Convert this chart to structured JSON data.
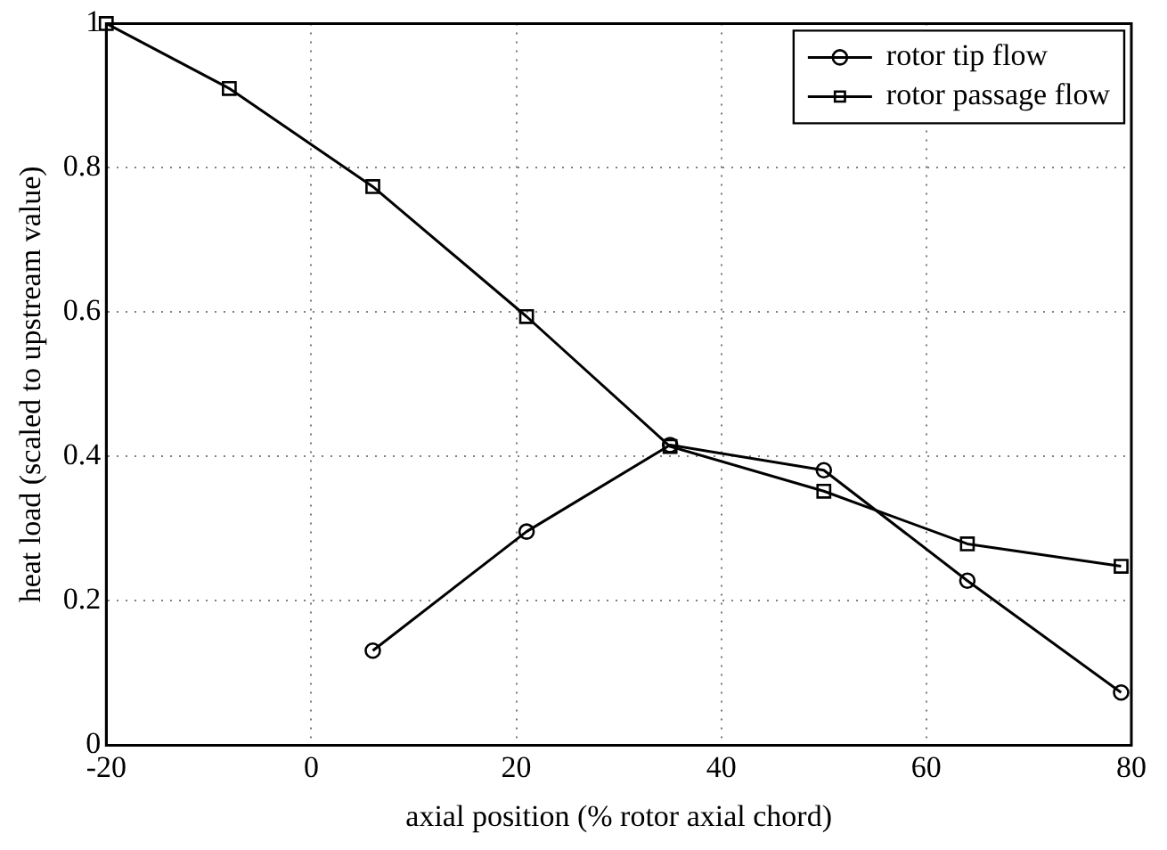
{
  "chart_data": {
    "type": "line",
    "xlabel": "axial position (% rotor axial chord)",
    "ylabel": "heat load (scaled to upstream value)",
    "xlim": [
      -20,
      80
    ],
    "xticks": [
      -20,
      0,
      20,
      40,
      60,
      80
    ],
    "ylim": [
      0,
      1
    ],
    "yticks": [
      0,
      0.2,
      0.4,
      0.6,
      0.8,
      1
    ],
    "grid": true,
    "legend": "top right",
    "line_style": "solid",
    "series": [
      {
        "name": "rotor tip flow",
        "color": "#000000",
        "marker": "circle",
        "x": [
          6,
          21,
          35,
          50,
          64,
          79
        ],
        "values": [
          0.131,
          0.296,
          0.416,
          0.381,
          0.228,
          0.073
        ]
      },
      {
        "name": "rotor passage flow",
        "color": "#000000",
        "marker": "square",
        "x": [
          -20,
          -8,
          6,
          21,
          35,
          50,
          64,
          79
        ],
        "values": [
          1,
          0.91,
          0.774,
          0.594,
          0.414,
          0.352,
          0.279,
          0.248
        ]
      }
    ]
  }
}
